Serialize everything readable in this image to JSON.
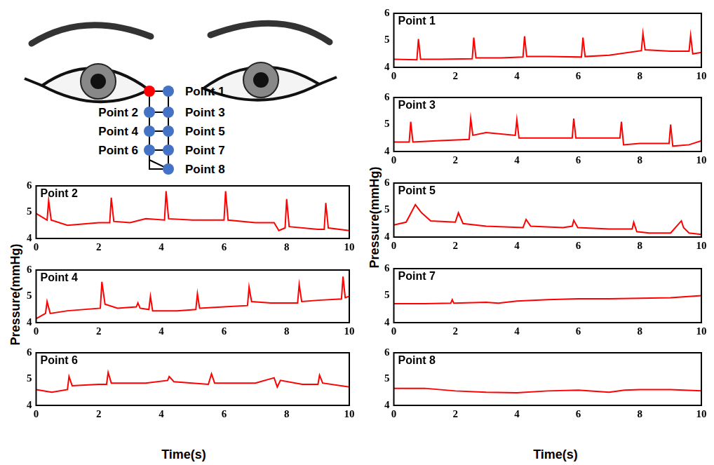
{
  "chart_data": [
    {
      "type": "line",
      "title": "Point 1",
      "color": "#ff0000",
      "grid": false,
      "x": [
        0,
        0.75,
        0.8,
        0.87,
        1.5,
        2.55,
        2.6,
        2.67,
        3.5,
        4.2,
        4.25,
        4.32,
        5,
        6.1,
        6.15,
        6.22,
        7,
        8.05,
        8.1,
        8.17,
        9,
        9.6,
        9.65,
        9.72,
        10
      ],
      "values": [
        4.3,
        4.28,
        5.05,
        4.3,
        4.3,
        4.32,
        5.1,
        4.35,
        4.35,
        4.38,
        5.15,
        4.4,
        4.4,
        4.38,
        5.1,
        4.4,
        4.45,
        4.62,
        5.25,
        4.65,
        4.6,
        4.6,
        5.18,
        4.5,
        4.55
      ],
      "xlim": [
        0,
        10
      ],
      "xticks": [
        0,
        2,
        4,
        6,
        8,
        10
      ],
      "ylim": [
        4,
        6
      ],
      "yticks": [
        4,
        5,
        6
      ]
    },
    {
      "type": "line",
      "title": "Point 2",
      "color": "#ff0000",
      "grid": false,
      "x": [
        0,
        0.35,
        0.4,
        0.48,
        1,
        2,
        2.35,
        2.4,
        2.48,
        3,
        3.5,
        4.1,
        4.15,
        4.23,
        5,
        6,
        6.05,
        6.13,
        7,
        7.6,
        7.75,
        7.95,
        8,
        8.08,
        9,
        9.2,
        9.25,
        9.33,
        10
      ],
      "values": [
        4.95,
        4.7,
        5.45,
        4.7,
        4.5,
        4.6,
        4.6,
        5.55,
        4.65,
        4.6,
        4.75,
        4.7,
        5.8,
        4.75,
        4.7,
        4.7,
        5.8,
        4.7,
        4.6,
        4.6,
        4.3,
        4.4,
        5.5,
        4.45,
        4.35,
        4.35,
        5.35,
        4.4,
        4.3
      ],
      "xlim": [
        0,
        10
      ],
      "xticks": [
        0,
        2,
        4,
        6,
        8,
        10
      ],
      "ylim": [
        4,
        6
      ],
      "yticks": [
        4,
        5,
        6
      ]
    },
    {
      "type": "line",
      "title": "Point 3",
      "color": "#ff0000",
      "grid": false,
      "x": [
        0,
        0.5,
        0.55,
        0.62,
        1.5,
        2.45,
        2.5,
        2.57,
        3,
        3.95,
        4,
        4.07,
        5,
        5.8,
        5.85,
        5.92,
        7,
        7.35,
        7.4,
        7.47,
        8,
        8.95,
        9,
        9.07,
        9.6,
        10
      ],
      "values": [
        4.35,
        4.35,
        5.1,
        4.35,
        4.4,
        4.45,
        5.22,
        4.6,
        4.7,
        4.6,
        5.18,
        4.5,
        4.5,
        4.5,
        5.22,
        4.5,
        4.5,
        4.5,
        5.1,
        4.25,
        4.3,
        4.3,
        5.0,
        4.2,
        4.25,
        4.4
      ],
      "xlim": [
        0,
        10
      ],
      "xticks": [
        0,
        2,
        4,
        6,
        8,
        10
      ],
      "ylim": [
        4,
        6
      ],
      "yticks": [
        4,
        5,
        6
      ]
    },
    {
      "type": "line",
      "title": "Point 4",
      "color": "#ff0000",
      "grid": false,
      "x": [
        0,
        0.3,
        0.35,
        0.45,
        1,
        2.05,
        2.1,
        2.2,
        2.6,
        3.2,
        3.25,
        3.32,
        3.6,
        3.65,
        3.72,
        4.5,
        5.1,
        5.15,
        5.22,
        6,
        6.75,
        6.8,
        6.88,
        7.5,
        8.35,
        8.4,
        8.48,
        9,
        9.75,
        9.8,
        9.87,
        10
      ],
      "values": [
        4.15,
        4.35,
        4.8,
        4.35,
        4.45,
        4.55,
        5.55,
        4.7,
        4.55,
        4.6,
        4.75,
        4.55,
        4.5,
        5.0,
        4.45,
        4.45,
        4.5,
        5.1,
        4.55,
        4.6,
        4.65,
        5.35,
        4.8,
        4.75,
        4.75,
        5.45,
        4.8,
        4.85,
        4.9,
        5.75,
        4.95,
        5.0
      ],
      "xlim": [
        0,
        10
      ],
      "xticks": [
        0,
        2,
        4,
        6,
        8,
        10
      ],
      "ylim": [
        4,
        6
      ],
      "yticks": [
        4,
        5,
        6
      ]
    },
    {
      "type": "line",
      "title": "Point 5",
      "color": "#ff0000",
      "grid": false,
      "x": [
        0,
        0.4,
        0.7,
        0.9,
        1.2,
        2,
        2.1,
        2.25,
        3,
        4.2,
        4.3,
        4.45,
        5.5,
        5.8,
        5.85,
        5.98,
        7,
        7.75,
        7.8,
        7.9,
        8.3,
        9,
        9.35,
        9.42,
        9.6,
        10
      ],
      "values": [
        4.45,
        4.55,
        5.2,
        4.9,
        4.6,
        4.55,
        4.9,
        4.5,
        4.4,
        4.35,
        4.65,
        4.4,
        4.35,
        4.4,
        4.62,
        4.35,
        4.3,
        4.3,
        4.55,
        4.2,
        4.15,
        4.15,
        4.6,
        4.35,
        4.15,
        4.1
      ],
      "xlim": [
        0,
        10
      ],
      "xticks": [
        0,
        2,
        4,
        6,
        8,
        10
      ],
      "ylim": [
        4,
        6
      ],
      "yticks": [
        4,
        5,
        6
      ]
    },
    {
      "type": "line",
      "title": "Point 6",
      "color": "#ff0000",
      "grid": false,
      "x": [
        0,
        0.5,
        1,
        1.05,
        1.15,
        2,
        2.25,
        2.3,
        2.4,
        3.5,
        4.2,
        4.25,
        4.4,
        5.5,
        5.6,
        5.7,
        7,
        7.6,
        7.7,
        7.8,
        8.5,
        9,
        9.05,
        9.15,
        10
      ],
      "values": [
        4.6,
        4.5,
        4.6,
        5.1,
        4.75,
        4.8,
        4.8,
        5.25,
        4.85,
        4.85,
        4.95,
        5.1,
        4.9,
        4.8,
        5.2,
        4.85,
        4.85,
        5.05,
        4.7,
        4.95,
        4.8,
        4.8,
        5.15,
        4.85,
        4.7
      ],
      "xlim": [
        0,
        10
      ],
      "xticks": [
        0,
        2,
        4,
        6,
        8,
        10
      ],
      "ylim": [
        4,
        6
      ],
      "yticks": [
        4,
        5,
        6
      ]
    },
    {
      "type": "line",
      "title": "Point 7",
      "color": "#ff0000",
      "grid": false,
      "x": [
        0,
        1,
        1.85,
        1.9,
        1.95,
        3,
        3.4,
        4,
        5,
        6,
        7,
        8,
        9,
        10
      ],
      "values": [
        4.7,
        4.7,
        4.72,
        4.85,
        4.72,
        4.75,
        4.72,
        4.8,
        4.85,
        4.88,
        4.88,
        4.9,
        4.92,
        5.0
      ],
      "xlim": [
        0,
        10
      ],
      "xticks": [
        0,
        2,
        4,
        6,
        8,
        10
      ],
      "ylim": [
        4,
        6
      ],
      "yticks": [
        4,
        5,
        6
      ]
    },
    {
      "type": "line",
      "title": "Point 8",
      "color": "#ff0000",
      "grid": false,
      "x": [
        0,
        1,
        2,
        3,
        4,
        5,
        6,
        7,
        7.5,
        8,
        9,
        10
      ],
      "values": [
        4.65,
        4.65,
        4.55,
        4.5,
        4.48,
        4.55,
        4.58,
        4.5,
        4.58,
        4.6,
        4.6,
        4.55
      ],
      "xlim": [
        0,
        10
      ],
      "xticks": [
        0,
        2,
        4,
        6,
        8,
        10
      ],
      "ylim": [
        4,
        6
      ],
      "yticks": [
        4,
        5,
        6
      ]
    }
  ],
  "figure": {
    "xlabel": "Time(s)",
    "ylabel": "Pressure(mmHg)"
  }
}
